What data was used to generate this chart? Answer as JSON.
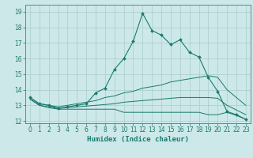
{
  "xlabel": "Humidex (Indice chaleur)",
  "bg_color": "#cce8e8",
  "grid_color": "#aacccc",
  "line_color": "#1a7a6e",
  "xlim": [
    -0.5,
    23.5
  ],
  "ylim": [
    11.85,
    19.45
  ],
  "yticks": [
    12,
    13,
    14,
    15,
    16,
    17,
    18,
    19
  ],
  "xticks": [
    0,
    1,
    2,
    3,
    4,
    5,
    6,
    7,
    8,
    9,
    10,
    11,
    12,
    13,
    14,
    15,
    16,
    17,
    18,
    19,
    20,
    21,
    22,
    23
  ],
  "line1_x": [
    0,
    1,
    2,
    3,
    4,
    5,
    6,
    7,
    8,
    9,
    10,
    11,
    12,
    13,
    14,
    15,
    16,
    17,
    18,
    19,
    20,
    21,
    22,
    23
  ],
  "line1_y": [
    13.5,
    13.1,
    13.0,
    12.8,
    12.9,
    13.0,
    13.1,
    13.8,
    14.1,
    15.3,
    16.0,
    17.1,
    18.9,
    17.8,
    17.5,
    16.9,
    17.2,
    16.4,
    16.1,
    14.8,
    13.9,
    12.6,
    12.4,
    12.1
  ],
  "line2_x": [
    0,
    1,
    2,
    3,
    4,
    5,
    6,
    7,
    8,
    9,
    10,
    11,
    12,
    13,
    14,
    15,
    16,
    17,
    18,
    19,
    20,
    21,
    22,
    23
  ],
  "line2_y": [
    13.5,
    13.1,
    13.0,
    12.9,
    13.0,
    13.1,
    13.2,
    13.3,
    13.5,
    13.6,
    13.8,
    13.9,
    14.1,
    14.2,
    14.3,
    14.5,
    14.6,
    14.7,
    14.8,
    14.9,
    14.8,
    14.0,
    13.5,
    13.0
  ],
  "line3_x": [
    0,
    1,
    2,
    3,
    4,
    5,
    6,
    7,
    8,
    9,
    10,
    11,
    12,
    13,
    14,
    15,
    16,
    17,
    18,
    19,
    20,
    21,
    22,
    23
  ],
  "line3_y": [
    13.4,
    13.0,
    12.9,
    12.8,
    12.85,
    12.9,
    12.95,
    13.0,
    13.05,
    13.1,
    13.2,
    13.25,
    13.3,
    13.35,
    13.4,
    13.45,
    13.5,
    13.5,
    13.5,
    13.5,
    13.45,
    13.0,
    12.7,
    12.4
  ],
  "line4_x": [
    0,
    1,
    2,
    3,
    4,
    5,
    6,
    7,
    8,
    9,
    10,
    11,
    12,
    13,
    14,
    15,
    16,
    17,
    18,
    19,
    20,
    21,
    22,
    23
  ],
  "line4_y": [
    13.4,
    13.0,
    12.85,
    12.75,
    12.75,
    12.75,
    12.75,
    12.75,
    12.75,
    12.75,
    12.55,
    12.55,
    12.55,
    12.55,
    12.55,
    12.55,
    12.55,
    12.55,
    12.55,
    12.4,
    12.4,
    12.55,
    12.35,
    12.1
  ],
  "tick_fontsize": 5.5,
  "xlabel_fontsize": 6.5
}
